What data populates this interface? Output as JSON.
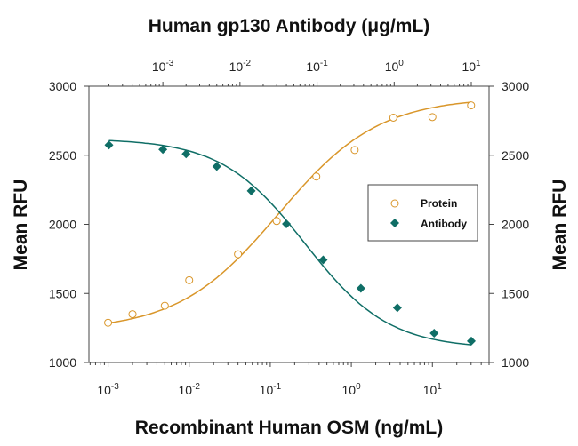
{
  "chart_data": {
    "type": "scatter",
    "title": "Human gp130 Antibody (μg/mL)",
    "xlabel": "Recombinant Human OSM (ng/mL)",
    "x2label": "Human gp130 Antibody (μg/mL)",
    "ylabel": "Mean RFU",
    "y2label": "Mean RFU",
    "xscale": "log",
    "xlim": [
      0.00058,
      50
    ],
    "x_ticks": [
      "10-3",
      "10-2",
      "10-1",
      "100",
      "101"
    ],
    "x2lim": [
      0.00011,
      17
    ],
    "x2_ticks": [
      "10-3",
      "10-2",
      "10-1",
      "100",
      "101"
    ],
    "ylim": [
      1000,
      3000
    ],
    "y_ticks": [
      "1000",
      "1500",
      "2000",
      "2500",
      "3000"
    ],
    "grid": false,
    "legend_position": "right",
    "series": [
      {
        "name": "Protein",
        "axis": "bottom",
        "marker": "open-circle",
        "color": "#d9962a",
        "x": [
          0.001,
          0.002,
          0.005,
          0.01,
          0.04,
          0.12,
          0.37,
          1.1,
          3.3,
          10,
          30
        ],
        "y": [
          1288,
          1350,
          1411,
          1596,
          1784,
          2024,
          2346,
          2538,
          2772,
          2776,
          2861
        ]
      },
      {
        "name": "Antibody",
        "axis": "top",
        "marker": "filled-diamond",
        "color": "#0f6e66",
        "x": [
          0.0002,
          0.001,
          0.002,
          0.005,
          0.014,
          0.04,
          0.12,
          0.37,
          1.1,
          3.3,
          10
        ],
        "y": [
          2574,
          2542,
          2510,
          2419,
          2242,
          2003,
          1743,
          1537,
          1396,
          1212,
          1155
        ]
      }
    ]
  }
}
